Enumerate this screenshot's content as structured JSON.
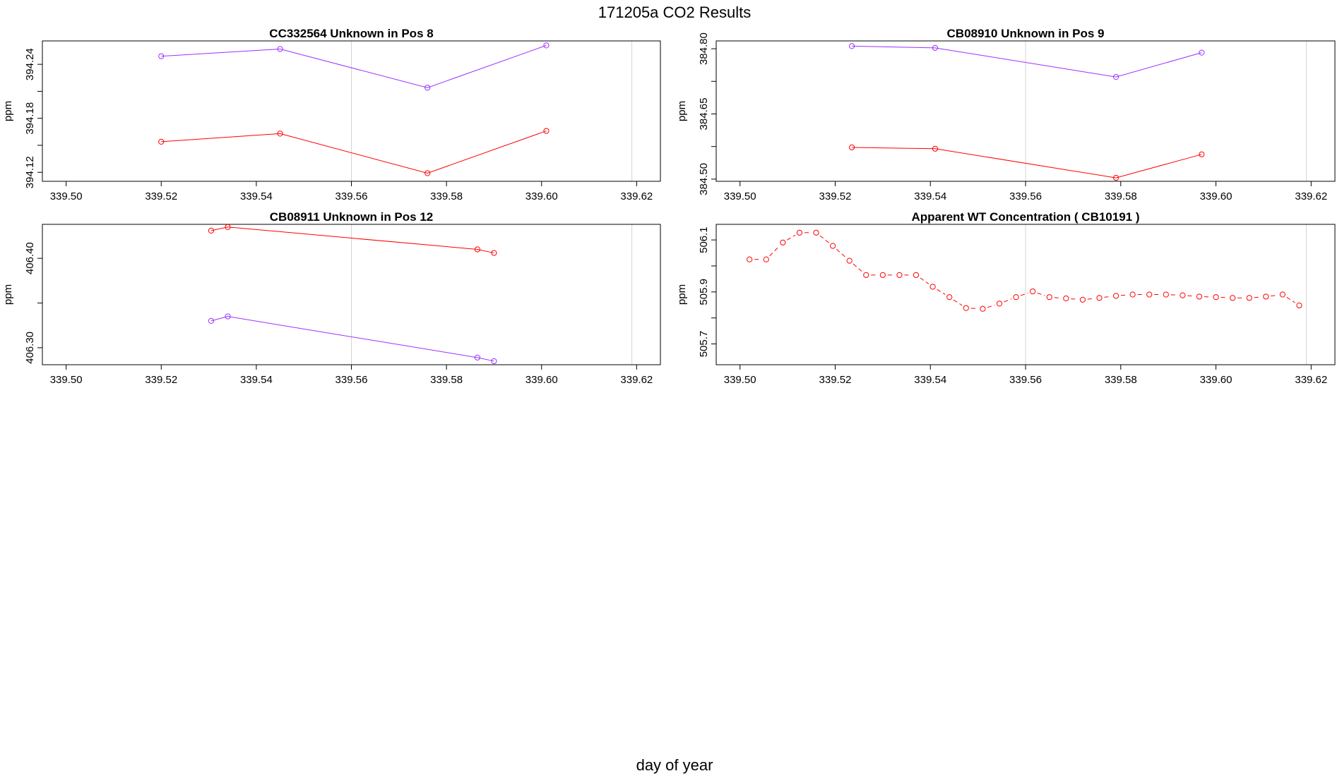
{
  "figure": {
    "title": "171205a  CO2 Results",
    "xlabel": "day of year"
  },
  "chart_data": [
    {
      "type": "line",
      "title": "CC332564    Unknown in Pos 8",
      "xlabel": "",
      "ylabel": "ppm",
      "xlim": [
        339.495,
        339.625
      ],
      "ylim": [
        394.11,
        394.266
      ],
      "xticks": [
        "339.50",
        "339.52",
        "339.54",
        "339.56",
        "339.58",
        "339.60",
        "339.62"
      ],
      "xtick_values": [
        339.5,
        339.52,
        339.54,
        339.56,
        339.58,
        339.6,
        339.62
      ],
      "yticks": [
        "394.12",
        "394.18",
        "394.24"
      ],
      "ytick_values": [
        394.12,
        394.18,
        394.24
      ],
      "ytick_minor_values": [
        394.15,
        394.21
      ],
      "vlines": [
        339.56,
        339.619
      ],
      "series": [
        {
          "color": "#9b30ff",
          "dash": false,
          "x": [
            339.52,
            339.545,
            339.576,
            339.601
          ],
          "y": [
            394.249,
            394.257,
            394.214,
            394.261
          ]
        },
        {
          "color": "#ff0000",
          "dash": false,
          "x": [
            339.52,
            339.545,
            339.576,
            339.601
          ],
          "y": [
            394.154,
            394.163,
            394.119,
            394.166
          ]
        }
      ]
    },
    {
      "type": "line",
      "title": "CB08910    Unknown in Pos 9",
      "xlabel": "",
      "ylabel": "ppm",
      "xlim": [
        339.495,
        339.625
      ],
      "ylim": [
        384.495,
        384.818
      ],
      "xticks": [
        "339.50",
        "339.52",
        "339.54",
        "339.56",
        "339.58",
        "339.60",
        "339.62"
      ],
      "xtick_values": [
        339.5,
        339.52,
        339.54,
        339.56,
        339.58,
        339.6,
        339.62
      ],
      "yticks": [
        "384.50",
        "384.65",
        "384.80"
      ],
      "ytick_values": [
        384.5,
        384.65,
        384.8
      ],
      "ytick_minor_values": [
        384.575,
        384.725
      ],
      "vlines": [
        339.56,
        339.619
      ],
      "series": [
        {
          "color": "#9b30ff",
          "dash": false,
          "x": [
            339.5235,
            339.541,
            339.579,
            339.597
          ],
          "y": [
            384.806,
            384.802,
            384.735,
            384.791
          ]
        },
        {
          "color": "#ff0000",
          "dash": false,
          "x": [
            339.5235,
            339.541,
            339.579,
            339.597
          ],
          "y": [
            384.573,
            384.57,
            384.503,
            384.557
          ]
        }
      ]
    },
    {
      "type": "line",
      "title": "CB08911    Unknown in Pos 12",
      "xlabel": "",
      "ylabel": "ppm",
      "xlim": [
        339.495,
        339.625
      ],
      "ylim": [
        406.281,
        406.438
      ],
      "xticks": [
        "339.50",
        "339.52",
        "339.54",
        "339.56",
        "339.58",
        "339.60",
        "339.62"
      ],
      "xtick_values": [
        339.5,
        339.52,
        339.54,
        339.56,
        339.58,
        339.6,
        339.62
      ],
      "yticks": [
        "406.30",
        "406.40"
      ],
      "ytick_values": [
        406.3,
        406.4
      ],
      "ytick_minor_values": [
        406.35,
        406.45
      ],
      "vlines": [
        339.56,
        339.619
      ],
      "series": [
        {
          "color": "#ff0000",
          "dash": false,
          "x": [
            339.5305,
            339.534,
            339.5865,
            339.59
          ],
          "y": [
            406.431,
            406.435,
            406.41,
            406.406
          ]
        },
        {
          "color": "#9b30ff",
          "dash": false,
          "x": [
            339.5305,
            339.534,
            339.5865,
            339.59
          ],
          "y": [
            406.33,
            406.335,
            406.289,
            406.285
          ]
        }
      ]
    },
    {
      "type": "line",
      "title": "Apparent WT Concentration ( CB10191 )",
      "xlabel": "",
      "ylabel": "ppm",
      "xlim": [
        339.495,
        339.625
      ],
      "ylim": [
        505.62,
        506.16
      ],
      "xticks": [
        "339.50",
        "339.52",
        "339.54",
        "339.56",
        "339.58",
        "339.60",
        "339.62"
      ],
      "xtick_values": [
        339.5,
        339.52,
        339.54,
        339.56,
        339.58,
        339.6,
        339.62
      ],
      "yticks": [
        "505.7",
        "505.9",
        "506.1"
      ],
      "ytick_values": [
        505.7,
        505.9,
        506.1
      ],
      "ytick_minor_values": [
        505.8,
        506.0
      ],
      "vlines": [
        339.56,
        339.619
      ],
      "series": [
        {
          "color": "#ff0000",
          "dash": true,
          "x": [
            339.502,
            339.5055,
            339.509,
            339.5125,
            339.516,
            339.5195,
            339.523,
            339.5265,
            339.53,
            339.5335,
            339.537,
            339.5405,
            339.544,
            339.5475,
            339.551,
            339.5545,
            339.558,
            339.5615,
            339.565,
            339.5685,
            339.572,
            339.5755,
            339.579,
            339.5825,
            339.586,
            339.5895,
            339.593,
            339.5965,
            339.6,
            339.6035,
            339.607,
            339.6105,
            339.614,
            339.6175
          ],
          "y": [
            506.025,
            506.025,
            506.09,
            506.128,
            506.128,
            506.077,
            506.02,
            505.965,
            505.965,
            505.965,
            505.965,
            505.92,
            505.88,
            505.838,
            505.835,
            505.855,
            505.88,
            505.902,
            505.88,
            505.875,
            505.87,
            505.877,
            505.885,
            505.89,
            505.89,
            505.89,
            505.887,
            505.882,
            505.88,
            505.877,
            505.877,
            505.882,
            505.89,
            505.848
          ]
        }
      ]
    }
  ]
}
